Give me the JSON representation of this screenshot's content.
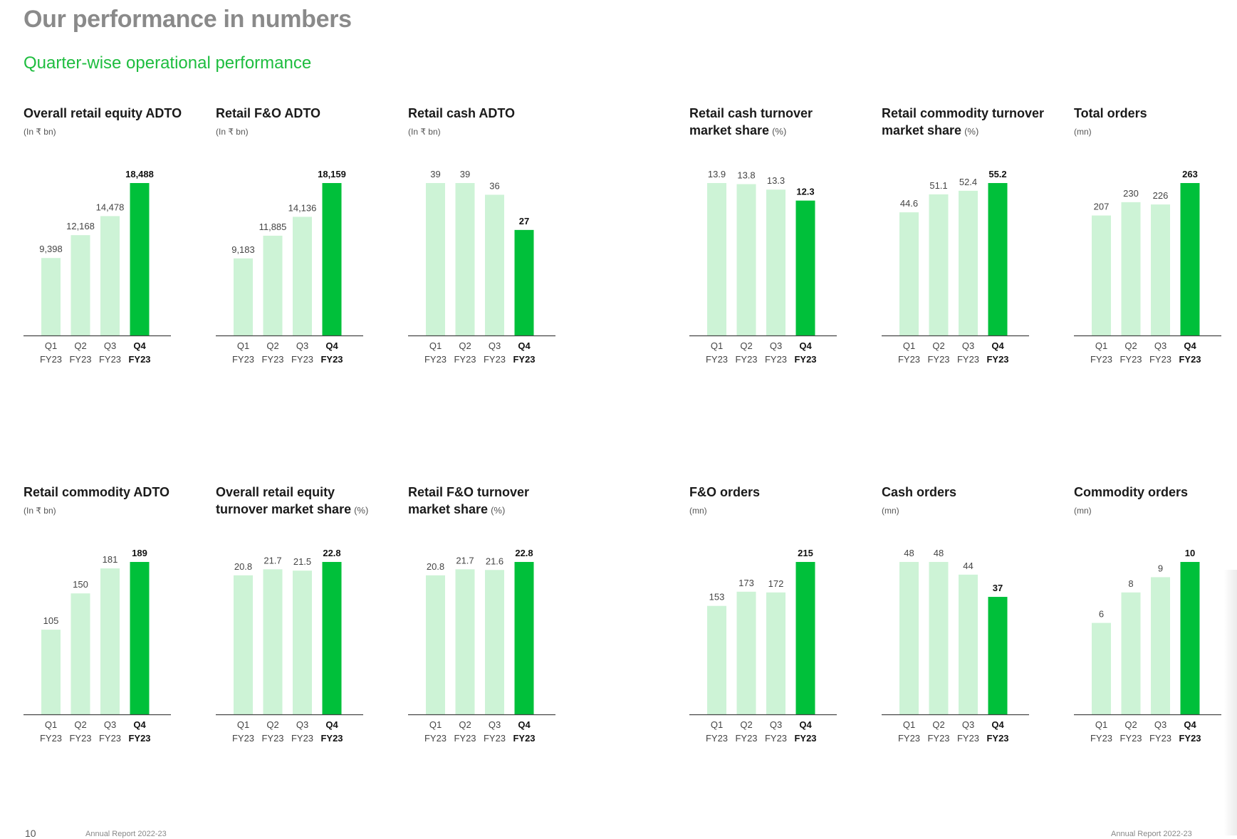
{
  "page": {
    "title": "Our performance in numbers",
    "subtitle": "Quarter-wise operational performance",
    "page_number": "10",
    "footer_left": "Annual Report 2022-23",
    "footer_right": "Annual Report 2022-23"
  },
  "colors": {
    "title": "#8a8a8a",
    "accent": "#1ebd3f",
    "bar_light": "#cdf3d6",
    "bar_highlight": "#00c03a",
    "axis": "#444444"
  },
  "chart_data": [
    {
      "type": "bar",
      "title": [
        "Overall retail equity ADTO"
      ],
      "unit": "(In ₹ bn)",
      "categories": [
        [
          "Q1",
          "FY23"
        ],
        [
          "Q2",
          "FY23"
        ],
        [
          "Q3",
          "FY23"
        ],
        [
          "Q4",
          "FY23"
        ]
      ],
      "values": [
        9398,
        12168,
        14478,
        18488
      ],
      "labels": [
        "9,398",
        "12,168",
        "14,478",
        "18,488"
      ],
      "ylim": [
        0,
        18488
      ],
      "highlight_index": 3
    },
    {
      "type": "bar",
      "title": [
        "Retail F&O ADTO"
      ],
      "unit": "(In ₹ bn)",
      "categories": [
        [
          "Q1",
          "FY23"
        ],
        [
          "Q2",
          "FY23"
        ],
        [
          "Q3",
          "FY23"
        ],
        [
          "Q4",
          "FY23"
        ]
      ],
      "values": [
        9183,
        11885,
        14136,
        18159
      ],
      "labels": [
        "9,183",
        "11,885",
        "14,136",
        "18,159"
      ],
      "ylim": [
        0,
        18159
      ],
      "highlight_index": 3
    },
    {
      "type": "bar",
      "title": [
        "Retail cash ADTO"
      ],
      "unit": "(In ₹ bn)",
      "categories": [
        [
          "Q1",
          "FY23"
        ],
        [
          "Q2",
          "FY23"
        ],
        [
          "Q3",
          "FY23"
        ],
        [
          "Q4",
          "FY23"
        ]
      ],
      "values": [
        39,
        39,
        36,
        27
      ],
      "labels": [
        "39",
        "39",
        "36",
        "27"
      ],
      "ylim": [
        0,
        39
      ],
      "highlight_index": 3
    },
    {
      "type": "bar",
      "title": [
        "Retail cash turnover",
        "market share"
      ],
      "unit": "(%)",
      "categories": [
        [
          "Q1",
          "FY23"
        ],
        [
          "Q2",
          "FY23"
        ],
        [
          "Q3",
          "FY23"
        ],
        [
          "Q4",
          "FY23"
        ]
      ],
      "values": [
        13.9,
        13.8,
        13.3,
        12.3
      ],
      "labels": [
        "13.9",
        "13.8",
        "13.3",
        "12.3"
      ],
      "ylim": [
        0,
        13.9
      ],
      "highlight_index": 3
    },
    {
      "type": "bar",
      "title": [
        "Retail commodity turnover",
        "market share"
      ],
      "unit": "(%)",
      "categories": [
        [
          "Q1",
          "FY23"
        ],
        [
          "Q2",
          "FY23"
        ],
        [
          "Q3",
          "FY23"
        ],
        [
          "Q4",
          "FY23"
        ]
      ],
      "values": [
        44.6,
        51.1,
        52.4,
        55.2
      ],
      "labels": [
        "44.6",
        "51.1",
        "52.4",
        "55.2"
      ],
      "ylim": [
        0,
        55.2
      ],
      "highlight_index": 3
    },
    {
      "type": "bar",
      "title": [
        "Total orders"
      ],
      "unit": "(mn)",
      "categories": [
        [
          "Q1",
          "FY23"
        ],
        [
          "Q2",
          "FY23"
        ],
        [
          "Q3",
          "FY23"
        ],
        [
          "Q4",
          "FY23"
        ]
      ],
      "values": [
        207,
        230,
        226,
        263
      ],
      "labels": [
        "207",
        "230",
        "226",
        "263"
      ],
      "ylim": [
        0,
        263
      ],
      "highlight_index": 3
    },
    {
      "type": "bar",
      "title": [
        "Retail commodity ADTO"
      ],
      "unit": "(In ₹ bn)",
      "categories": [
        [
          "Q1",
          "FY23"
        ],
        [
          "Q2",
          "FY23"
        ],
        [
          "Q3",
          "FY23"
        ],
        [
          "Q4",
          "FY23"
        ]
      ],
      "values": [
        105,
        150,
        181,
        189
      ],
      "labels": [
        "105",
        "150",
        "181",
        "189"
      ],
      "ylim": [
        0,
        189
      ],
      "highlight_index": 3
    },
    {
      "type": "bar",
      "title": [
        "Overall retail equity",
        "turnover market share"
      ],
      "unit": "(%)",
      "categories": [
        [
          "Q1",
          "FY23"
        ],
        [
          "Q2",
          "FY23"
        ],
        [
          "Q3",
          "FY23"
        ],
        [
          "Q4",
          "FY23"
        ]
      ],
      "values": [
        20.8,
        21.7,
        21.5,
        22.8
      ],
      "labels": [
        "20.8",
        "21.7",
        "21.5",
        "22.8"
      ],
      "ylim": [
        0,
        22.8
      ],
      "highlight_index": 3
    },
    {
      "type": "bar",
      "title": [
        "Retail F&O turnover",
        "market share"
      ],
      "unit": "(%)",
      "categories": [
        [
          "Q1",
          "FY23"
        ],
        [
          "Q2",
          "FY23"
        ],
        [
          "Q3",
          "FY23"
        ],
        [
          "Q4",
          "FY23"
        ]
      ],
      "values": [
        20.8,
        21.7,
        21.6,
        22.8
      ],
      "labels": [
        "20.8",
        "21.7",
        "21.6",
        "22.8"
      ],
      "ylim": [
        0,
        22.8
      ],
      "highlight_index": 3
    },
    {
      "type": "bar",
      "title": [
        "F&O orders"
      ],
      "unit": "(mn)",
      "categories": [
        [
          "Q1",
          "FY23"
        ],
        [
          "Q2",
          "FY23"
        ],
        [
          "Q3",
          "FY23"
        ],
        [
          "Q4",
          "FY23"
        ]
      ],
      "values": [
        153,
        173,
        172,
        215
      ],
      "labels": [
        "153",
        "173",
        "172",
        "215"
      ],
      "ylim": [
        0,
        215
      ],
      "highlight_index": 3
    },
    {
      "type": "bar",
      "title": [
        "Cash orders"
      ],
      "unit": "(mn)",
      "categories": [
        [
          "Q1",
          "FY23"
        ],
        [
          "Q2",
          "FY23"
        ],
        [
          "Q3",
          "FY23"
        ],
        [
          "Q4",
          "FY23"
        ]
      ],
      "values": [
        48,
        48,
        44,
        37
      ],
      "labels": [
        "48",
        "48",
        "44",
        "37"
      ],
      "ylim": [
        0,
        48
      ],
      "highlight_index": 3
    },
    {
      "type": "bar",
      "title": [
        "Commodity orders"
      ],
      "unit": "(mn)",
      "categories": [
        [
          "Q1",
          "FY23"
        ],
        [
          "Q2",
          "FY23"
        ],
        [
          "Q3",
          "FY23"
        ],
        [
          "Q4",
          "FY23"
        ]
      ],
      "values": [
        6,
        8,
        9,
        10
      ],
      "labels": [
        "6",
        "8",
        "9",
        "10"
      ],
      "ylim": [
        0,
        10
      ],
      "highlight_index": 3
    }
  ]
}
